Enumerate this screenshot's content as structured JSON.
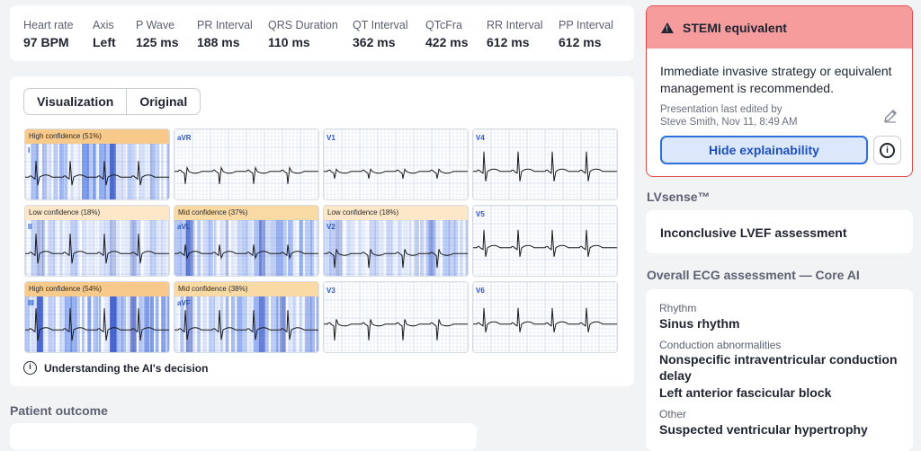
{
  "metrics": [
    {
      "label": "Heart rate",
      "value": "97 BPM"
    },
    {
      "label": "Axis",
      "value": "Left"
    },
    {
      "label": "P Wave",
      "value": "125 ms"
    },
    {
      "label": "PR Interval",
      "value": "188 ms"
    },
    {
      "label": "QRS Duration",
      "value": "110 ms"
    },
    {
      "label": "QT Interval",
      "value": "362 ms"
    },
    {
      "label": "QTcFra",
      "value": "422 ms"
    },
    {
      "label": "RR Interval",
      "value": "612 ms"
    },
    {
      "label": "PP Interval",
      "value": "612 ms"
    }
  ],
  "view_toggle": {
    "visualization": "Visualization",
    "original": "Original",
    "selected": "Visualization"
  },
  "leads": [
    {
      "name": "I",
      "confidence": "High confidence (51%)",
      "level": "high"
    },
    {
      "name": "aVR",
      "confidence": "",
      "level": "none"
    },
    {
      "name": "V1",
      "confidence": "",
      "level": "none"
    },
    {
      "name": "V4",
      "confidence": "",
      "level": "none"
    },
    {
      "name": "II",
      "confidence": "Low confidence (18%)",
      "level": "low"
    },
    {
      "name": "aVL",
      "confidence": "Mid confidence (37%)",
      "level": "mid"
    },
    {
      "name": "V2",
      "confidence": "Low confidence (18%)",
      "level": "low"
    },
    {
      "name": "V5",
      "confidence": "",
      "level": "none"
    },
    {
      "name": "III",
      "confidence": "High confidence (54%)",
      "level": "high"
    },
    {
      "name": "aVF",
      "confidence": "Mid confidence (38%)",
      "level": "mid"
    },
    {
      "name": "V3",
      "confidence": "",
      "level": "none"
    },
    {
      "name": "V6",
      "confidence": "",
      "level": "none"
    }
  ],
  "explain_link": "Understanding the AI's decision",
  "patient_outcome_title": "Patient outcome",
  "alert": {
    "title": "STEMI equivalent",
    "message": "Immediate invasive strategy or equivalent management is recommended.",
    "edited_line1": "Presentation last edited by",
    "edited_line2": "Steve Smith, Nov 11, 8:49 AM",
    "hide_button": "Hide explainability",
    "info_icon": "info-ai-icon",
    "edit_icon": "pencil-icon",
    "warning_icon": "warning-triangle-icon"
  },
  "lvsense": {
    "title": "LVsense™",
    "result": "Inconclusive LVEF assessment"
  },
  "assessment": {
    "title": "Overall ECG assessment — Core AI",
    "rhythm_label": "Rhythm",
    "rhythm_value": "Sinus rhythm",
    "conduction_label": "Conduction abnormalities",
    "conduction_values": [
      "Nonspecific intraventricular conduction delay",
      "Left anterior fascicular block"
    ],
    "other_label": "Other",
    "other_value": "Suspected ventricular hypertrophy"
  },
  "colors": {
    "alert_header": "#f79c9c",
    "alert_border": "#e24b4b",
    "accent": "#2f6fdd",
    "heat": "#2d5fe0"
  }
}
